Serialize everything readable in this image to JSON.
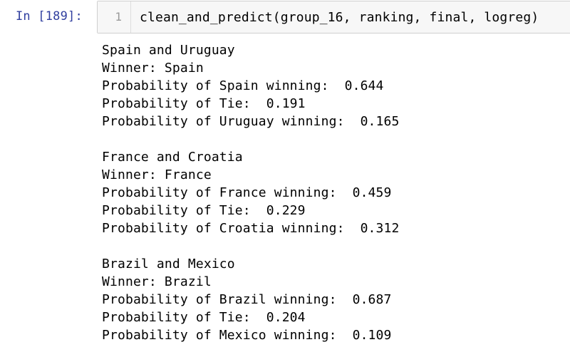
{
  "cell": {
    "prompt": "In [189]:",
    "line_number": "1",
    "code": "clean_and_predict(group_16, ranking, final, logreg)"
  },
  "output_lines": [
    "Spain and Uruguay",
    "Winner: Spain",
    "Probability of Spain winning:  0.644",
    "Probability of Tie:  0.191",
    "Probability of Uruguay winning:  0.165",
    "",
    "France and Croatia",
    "Winner: France",
    "Probability of France winning:  0.459",
    "Probability of Tie:  0.229",
    "Probability of Croatia winning:  0.312",
    "",
    "Brazil and Mexico",
    "Winner: Brazil",
    "Probability of Brazil winning:  0.687",
    "Probability of Tie:  0.204",
    "Probability of Mexico winning:  0.109"
  ],
  "colors": {
    "prompt": "#303F9F",
    "input_background": "#f7f7f7",
    "input_border": "#cfcfcf"
  }
}
